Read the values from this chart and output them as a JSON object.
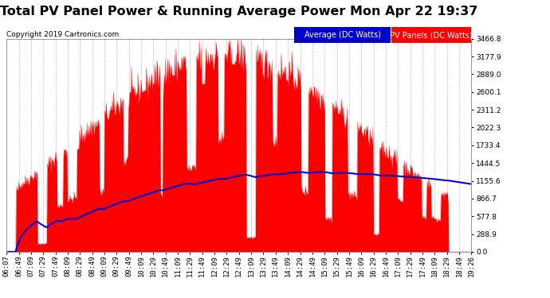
{
  "title": "Total PV Panel Power & Running Average Power Mon Apr 22 19:37",
  "copyright": "Copyright 2019 Cartronics.com",
  "ylabel_right_ticks": [
    0.0,
    288.9,
    577.8,
    866.7,
    1155.6,
    1444.5,
    1733.4,
    2022.3,
    2311.2,
    2600.1,
    2889.0,
    3177.9,
    3466.8
  ],
  "ymax": 3466.8,
  "ymin": 0.0,
  "legend_avg_label": "Average (DC Watts)",
  "legend_pv_label": "PV Panels (DC Watts)",
  "bg_color": "#ffffff",
  "plot_bg_color": "#ffffff",
  "bar_color": "#ff0000",
  "avg_line_color": "#0000cd",
  "title_color": "#000000",
  "tick_color": "#000000",
  "grid_color": "#aaaaaa",
  "x_tick_labels": [
    "06:07",
    "06:49",
    "07:09",
    "07:29",
    "07:49",
    "08:09",
    "08:29",
    "08:49",
    "09:09",
    "09:29",
    "09:49",
    "10:09",
    "10:29",
    "10:49",
    "11:09",
    "11:29",
    "11:49",
    "12:09",
    "12:29",
    "12:49",
    "13:09",
    "13:29",
    "13:49",
    "14:09",
    "14:29",
    "14:49",
    "15:09",
    "15:29",
    "15:49",
    "16:09",
    "16:29",
    "16:49",
    "17:09",
    "17:29",
    "17:49",
    "18:09",
    "18:29",
    "18:49",
    "19:26"
  ],
  "title_fontsize": 11.5,
  "copyright_fontsize": 6.5,
  "tick_fontsize": 6.5,
  "legend_fontsize": 7
}
